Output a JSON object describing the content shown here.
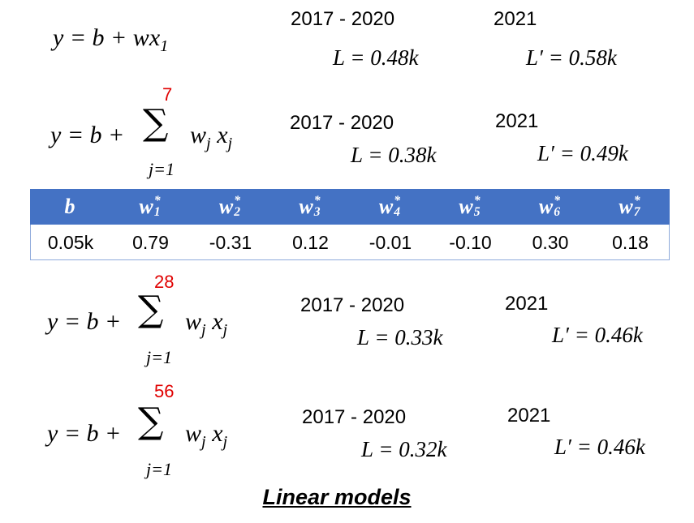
{
  "models": [
    {
      "formula": {
        "lhs": "y = b + wx",
        "sub": "1"
      },
      "train_period": "2017 - 2020",
      "train_loss": "L = 0.48k",
      "test_year": "2021",
      "test_loss": "L′ = 0.58k"
    },
    {
      "formula": {
        "lhs": "y = b +",
        "upper": "7",
        "sigma": "∑",
        "lower": "j=1",
        "term": "w",
        "term_sub": "j",
        "term2": " x",
        "term2_sub": "j"
      },
      "train_period": "2017 - 2020",
      "train_loss": "L = 0.38k",
      "test_year": "2021",
      "test_loss": "L′ = 0.49k"
    },
    {
      "formula": {
        "lhs": "y = b +",
        "upper": "28",
        "sigma": "∑",
        "lower": "j=1",
        "term": "w",
        "term_sub": "j",
        "term2": " x",
        "term2_sub": "j"
      },
      "train_period": "2017 - 2020",
      "train_loss": "L = 0.33k",
      "test_year": "2021",
      "test_loss": "L′ = 0.46k"
    },
    {
      "formula": {
        "lhs": "y = b +",
        "upper": "56",
        "sigma": "∑",
        "lower": "j=1",
        "term": "w",
        "term_sub": "j",
        "term2": " x",
        "term2_sub": "j"
      },
      "train_period": "2017 - 2020",
      "train_loss": "L = 0.32k",
      "test_year": "2021",
      "test_loss": "L′ = 0.46k"
    }
  ],
  "table": {
    "header": [
      {
        "base": "b"
      },
      {
        "base": "w",
        "sup": "*",
        "sub": "1"
      },
      {
        "base": "w",
        "sup": "*",
        "sub": "2"
      },
      {
        "base": "w",
        "sup": "*",
        "sub": "3"
      },
      {
        "base": "w",
        "sup": "*",
        "sub": "4"
      },
      {
        "base": "w",
        "sup": "*",
        "sub": "5"
      },
      {
        "base": "w",
        "sup": "*",
        "sub": "6"
      },
      {
        "base": "w",
        "sup": "*",
        "sub": "7"
      }
    ],
    "rows": [
      [
        "0.05k",
        "0.79",
        "-0.31",
        "0.12",
        "-0.01",
        "-0.10",
        "0.30",
        "0.18"
      ]
    ]
  },
  "caption": "Linear models"
}
